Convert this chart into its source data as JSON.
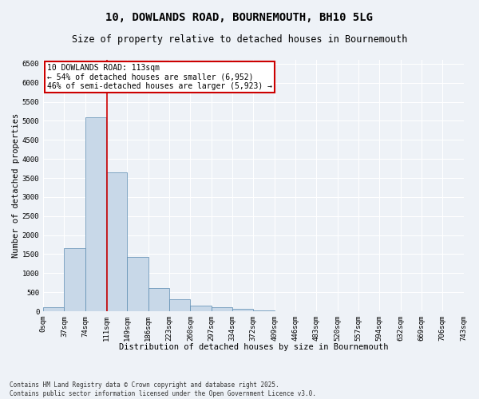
{
  "title_line1": "10, DOWLANDS ROAD, BOURNEMOUTH, BH10 5LG",
  "title_line2": "Size of property relative to detached houses in Bournemouth",
  "xlabel": "Distribution of detached houses by size in Bournemouth",
  "ylabel": "Number of detached properties",
  "footnote": "Contains HM Land Registry data © Crown copyright and database right 2025.\nContains public sector information licensed under the Open Government Licence v3.0.",
  "bar_values": [
    100,
    1650,
    5100,
    3650,
    1420,
    620,
    320,
    150,
    100,
    55,
    30,
    10,
    5,
    2,
    1,
    0,
    0,
    0,
    0,
    0
  ],
  "categories": [
    "0sqm",
    "37sqm",
    "74sqm",
    "111sqm",
    "149sqm",
    "186sqm",
    "223sqm",
    "260sqm",
    "297sqm",
    "334sqm",
    "372sqm",
    "409sqm",
    "446sqm",
    "483sqm",
    "520sqm",
    "557sqm",
    "594sqm",
    "632sqm",
    "669sqm",
    "706sqm",
    "743sqm"
  ],
  "bar_color": "#c8d8e8",
  "bar_edge_color": "#5a8ab0",
  "vline_color": "#cc0000",
  "annotation_text": "10 DOWLANDS ROAD: 113sqm\n← 54% of detached houses are smaller (6,952)\n46% of semi-detached houses are larger (5,923) →",
  "annotation_box_color": "#ffffff",
  "annotation_edge_color": "#cc0000",
  "ylim": [
    0,
    6600
  ],
  "yticks": [
    0,
    500,
    1000,
    1500,
    2000,
    2500,
    3000,
    3500,
    4000,
    4500,
    5000,
    5500,
    6000,
    6500
  ],
  "bg_color": "#eef2f7",
  "grid_color": "#ffffff",
  "title_fontsize": 10,
  "subtitle_fontsize": 8.5,
  "axis_label_fontsize": 7.5,
  "tick_fontsize": 6.5,
  "annotation_fontsize": 7,
  "footnote_fontsize": 5.5
}
